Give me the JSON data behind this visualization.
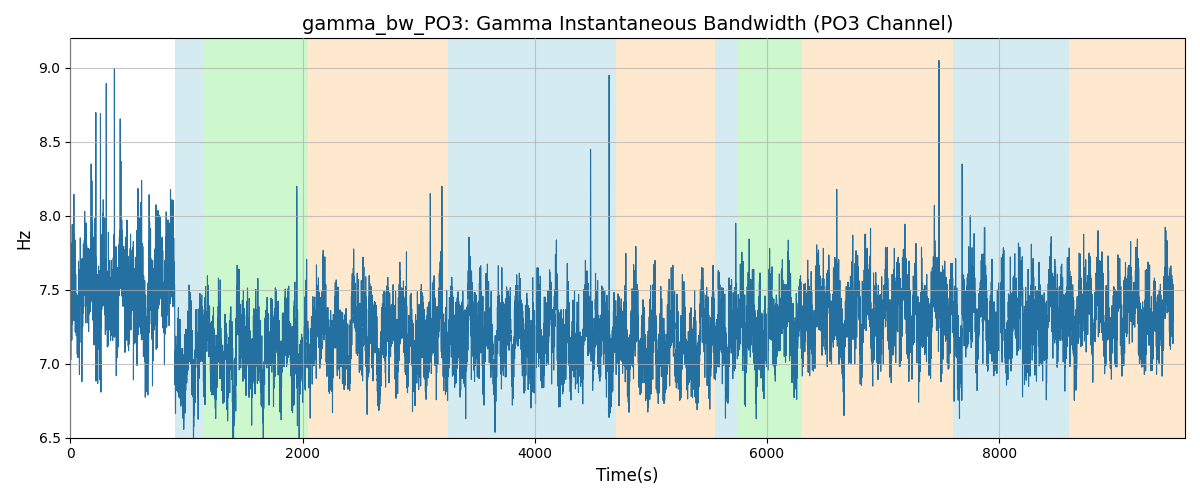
{
  "title": "gamma_bw_PO3: Gamma Instantaneous Bandwidth (PO3 Channel)",
  "xlabel": "Time(s)",
  "ylabel": "Hz",
  "xlim": [
    0,
    9600
  ],
  "ylim": [
    6.5,
    9.2
  ],
  "line_color": "#2470a0",
  "line_width": 0.8,
  "bg_regions": [
    {
      "xstart": 900,
      "xend": 1150,
      "color": "#add8e6",
      "alpha": 0.5
    },
    {
      "xstart": 1150,
      "xend": 2050,
      "color": "#90ee90",
      "alpha": 0.45
    },
    {
      "xstart": 2050,
      "xend": 3250,
      "color": "#ffd59e",
      "alpha": 0.5
    },
    {
      "xstart": 3250,
      "xend": 4700,
      "color": "#add8e6",
      "alpha": 0.5
    },
    {
      "xstart": 4700,
      "xend": 5550,
      "color": "#ffd59e",
      "alpha": 0.5
    },
    {
      "xstart": 5550,
      "xend": 5750,
      "color": "#add8e6",
      "alpha": 0.5
    },
    {
      "xstart": 5750,
      "xend": 6300,
      "color": "#90ee90",
      "alpha": 0.45
    },
    {
      "xstart": 6300,
      "xend": 7600,
      "color": "#ffd59e",
      "alpha": 0.5
    },
    {
      "xstart": 7600,
      "xend": 8600,
      "color": "#add8e6",
      "alpha": 0.5
    },
    {
      "xstart": 8600,
      "xend": 9600,
      "color": "#ffd59e",
      "alpha": 0.5
    }
  ],
  "grid_color": "#b0b0b0",
  "grid_alpha": 0.7,
  "grid_linewidth": 0.8,
  "yticks": [
    6.5,
    7.0,
    7.5,
    8.0,
    8.5,
    9.0
  ],
  "xticks": [
    0,
    2000,
    4000,
    6000,
    8000
  ],
  "seed": 42,
  "n_points": 9500,
  "title_fontsize": 14,
  "label_fontsize": 12
}
